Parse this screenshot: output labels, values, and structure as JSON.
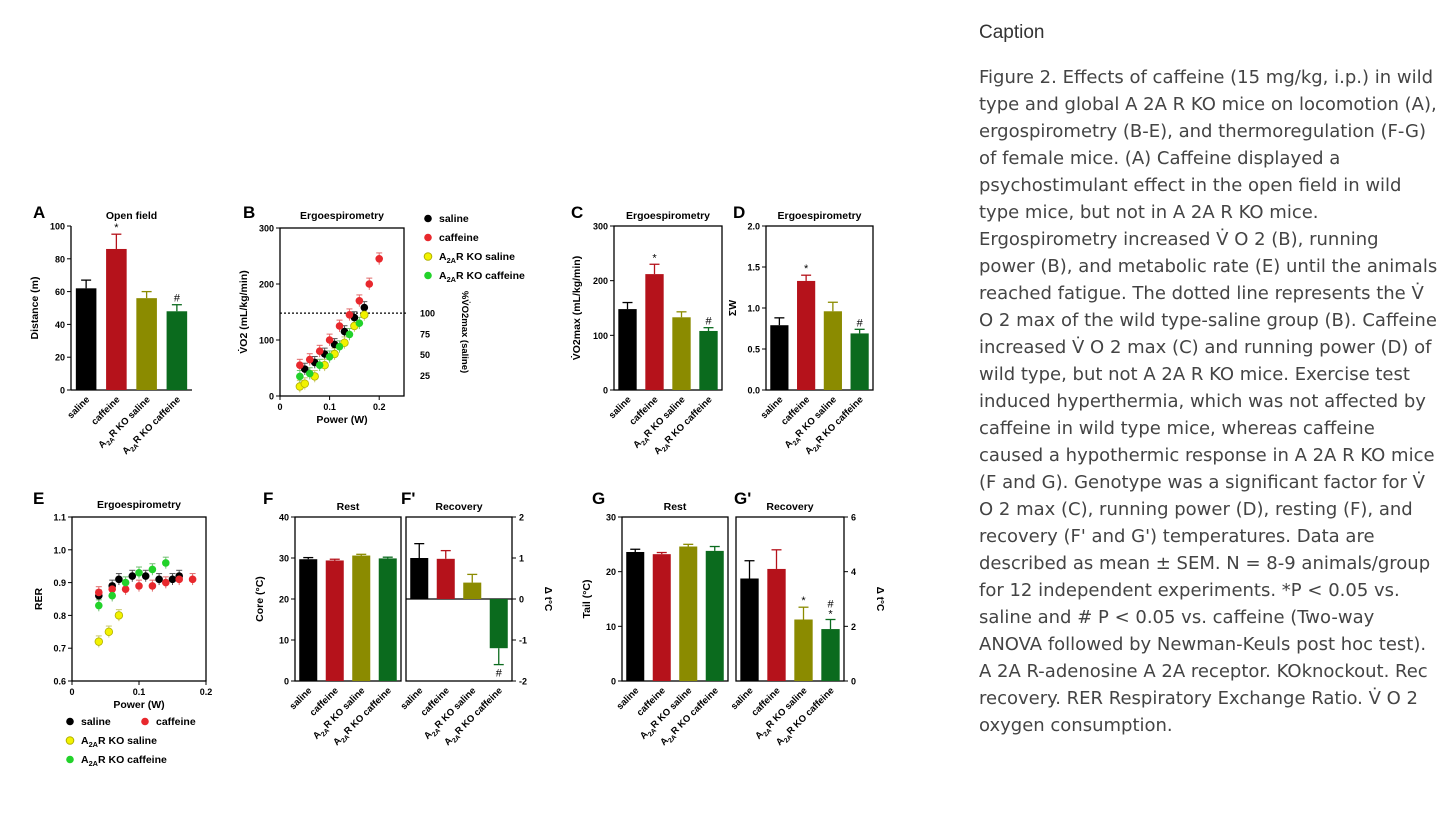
{
  "caption": {
    "heading": "Caption",
    "text": "Figure 2. Effects of caffeine (15 mg/kg, i.p.) in wild type and global A 2A R KO mice on locomotion (A), ergospirometry (B-E), and thermoregulation (F-G) of female mice. (A) Caffeine displayed a psychostimulant effect in the open field in wild type mice, but not in A 2A R KO mice. Ergospirometry increased V̇ O 2 (B), running power (B), and metabolic rate (E) until the animals reached fatigue. The dotted line represents the V̇ O 2 max of the wild type-saline group (B). Caffeine increased V̇ O 2 max (C) and running power (D) of wild type, but not A 2A R KO mice. Exercise test induced hyperthermia, which was not affected by caffeine in wild type mice, whereas caffeine caused a hypothermic response in A 2A R KO mice (F and G). Genotype was a significant factor for V̇ O 2 max (C), running power (D), resting (F), and recovery (F' and G') temperatures. Data are described as mean ± SEM. N = 8-9 animals/group for 12 independent experiments. *P < 0.05 vs. saline and # P < 0.05 vs. caffeine (Two-way ANOVA followed by Newman-Keuls post hoc test). A 2A R-adenosine A 2A receptor. KOknockout. Rec recovery. RER Respiratory Exchange Ratio. V̇ O 2 oxygen consumption."
  },
  "colors": {
    "saline": "#000000",
    "caffeine": "#b5121b",
    "ko_saline": "#8b8b00",
    "ko_caffeine": "#0b6b1e",
    "scatter_caffeine": "#e8282d",
    "scatter_ko_saline": "#f2f200",
    "scatter_ko_caffeine": "#22d22a"
  },
  "group_labels": [
    "saline",
    "caffeine",
    "A2AR KO saline",
    "A2AR KO caffeine"
  ],
  "chart_data": [
    {
      "panel": "A",
      "type": "bar",
      "title": "Open field",
      "ylabel": "Distance (m)",
      "ylim": [
        0,
        100
      ],
      "yticks": [
        0,
        20,
        40,
        60,
        80,
        100
      ],
      "categories": [
        "saline",
        "caffeine",
        "A2AR KO saline",
        "A2AR KO caffeine"
      ],
      "values": [
        62,
        86,
        56,
        48
      ],
      "errors": [
        5,
        9,
        4,
        4
      ],
      "marks": [
        "",
        "*",
        "",
        "#"
      ]
    },
    {
      "panel": "B",
      "type": "scatter",
      "title": "Ergoespirometry",
      "xlabel": "Power (W)",
      "ylabel": "V̇O2 (mL/kg/min)",
      "xlim": [
        0,
        0.25
      ],
      "ylim": [
        0,
        300
      ],
      "xticks": [
        0,
        0.1,
        0.2
      ],
      "yticks": [
        0,
        100,
        200,
        300
      ],
      "right_axis": {
        "label": "%V̇O2max (saline)",
        "ticks": [
          25,
          50,
          75,
          100
        ]
      },
      "reference_line": 148,
      "legend": [
        "saline",
        "caffeine",
        "A2AR KO saline",
        "A2AR KO caffeine"
      ],
      "series": [
        {
          "name": "saline",
          "x": [
            0.05,
            0.07,
            0.09,
            0.11,
            0.13,
            0.15,
            0.17
          ],
          "y": [
            48,
            60,
            75,
            92,
            115,
            140,
            158
          ]
        },
        {
          "name": "caffeine",
          "x": [
            0.04,
            0.06,
            0.08,
            0.1,
            0.12,
            0.14,
            0.16,
            0.18,
            0.2
          ],
          "y": [
            55,
            65,
            80,
            100,
            125,
            145,
            170,
            200,
            245
          ]
        },
        {
          "name": "A2AR KO saline",
          "x": [
            0.04,
            0.05,
            0.07,
            0.09,
            0.11,
            0.13,
            0.15,
            0.17
          ],
          "y": [
            17,
            22,
            35,
            55,
            75,
            95,
            125,
            145
          ]
        },
        {
          "name": "A2AR KO caffeine",
          "x": [
            0.04,
            0.06,
            0.08,
            0.1,
            0.12,
            0.14,
            0.16
          ],
          "y": [
            35,
            40,
            55,
            70,
            88,
            110,
            130
          ]
        }
      ]
    },
    {
      "panel": "C",
      "type": "bar",
      "title": "Ergoespirometry",
      "ylabel": "V̇O2max (mL/kg/min)",
      "ylim": [
        0,
        300
      ],
      "yticks": [
        0,
        100,
        200,
        300
      ],
      "categories": [
        "saline",
        "caffeine",
        "A2AR KO saline",
        "A2AR KO caffeine"
      ],
      "values": [
        148,
        212,
        133,
        108
      ],
      "errors": [
        12,
        18,
        10,
        6
      ],
      "marks": [
        "",
        "*",
        "",
        "#"
      ]
    },
    {
      "panel": "D",
      "type": "bar",
      "title": "Ergoespirometry",
      "ylabel": "ΣW",
      "ylim": [
        0,
        2.0
      ],
      "yticks": [
        "0.0",
        "0.5",
        "1.0",
        "1.5",
        "2.0"
      ],
      "categories": [
        "saline",
        "caffeine",
        "A2AR KO saline",
        "A2AR KO caffeine"
      ],
      "values": [
        0.79,
        1.33,
        0.96,
        0.69
      ],
      "errors": [
        0.09,
        0.07,
        0.11,
        0.05
      ],
      "marks": [
        "",
        "*",
        "",
        "#"
      ]
    },
    {
      "panel": "E",
      "type": "scatter",
      "title": "Ergoespirometry",
      "xlabel": "Power (W)",
      "ylabel": "RER",
      "xlim": [
        0,
        0.2
      ],
      "ylim": [
        0.6,
        1.1
      ],
      "xticks": [
        0,
        0.1,
        0.2
      ],
      "yticks": [
        "0.6",
        "0.7",
        "0.8",
        "0.9",
        "1.0",
        "1.1"
      ],
      "legend": [
        "saline",
        "caffeine",
        "A2AR KO saline",
        "A2AR KO caffeine"
      ],
      "series": [
        {
          "name": "saline",
          "x": [
            0.04,
            0.06,
            0.07,
            0.09,
            0.11,
            0.13,
            0.15,
            0.16
          ],
          "y": [
            0.86,
            0.89,
            0.91,
            0.92,
            0.92,
            0.91,
            0.91,
            0.92
          ]
        },
        {
          "name": "caffeine",
          "x": [
            0.04,
            0.06,
            0.08,
            0.1,
            0.12,
            0.14,
            0.16,
            0.18
          ],
          "y": [
            0.87,
            0.88,
            0.88,
            0.89,
            0.89,
            0.9,
            0.91,
            0.91
          ]
        },
        {
          "name": "A2AR KO saline",
          "x": [
            0.04,
            0.055,
            0.07
          ],
          "y": [
            0.72,
            0.75,
            0.8
          ]
        },
        {
          "name": "A2AR KO caffeine",
          "x": [
            0.04,
            0.06,
            0.08,
            0.1,
            0.12,
            0.14
          ],
          "y": [
            0.83,
            0.86,
            0.9,
            0.93,
            0.94,
            0.96
          ]
        }
      ]
    },
    {
      "panel": "F",
      "type": "bar",
      "title": "Rest",
      "ylabel": "Core (°C)",
      "ylim": [
        0,
        40
      ],
      "yticks": [
        0,
        10,
        20,
        30,
        40
      ],
      "categories": [
        "saline",
        "caffeine",
        "A2AR KO saline",
        "A2AR KO caffeine"
      ],
      "values": [
        29.7,
        29.4,
        30.6,
        29.9
      ],
      "errors": [
        0.4,
        0.3,
        0.3,
        0.3
      ],
      "marks": [
        "",
        "",
        "",
        ""
      ]
    },
    {
      "panel": "F'",
      "type": "bar",
      "title": "Recovery",
      "ylabel": "Δ t°C",
      "ylim": [
        -2,
        2
      ],
      "yticks": [
        -2,
        -1,
        0,
        1,
        2
      ],
      "categories": [
        "saline",
        "caffeine",
        "A2AR KO saline",
        "A2AR KO caffeine"
      ],
      "values": [
        1.0,
        0.98,
        0.4,
        -1.2
      ],
      "errors": [
        0.35,
        0.2,
        0.2,
        0.4
      ],
      "marks": [
        "",
        "",
        "",
        "#"
      ]
    },
    {
      "panel": "G",
      "type": "bar",
      "title": "Rest",
      "ylabel": "Tail (°C)",
      "ylim": [
        0,
        30
      ],
      "yticks": [
        0,
        10,
        20,
        30
      ],
      "categories": [
        "saline",
        "caffeine",
        "A2AR KO saline",
        "A2AR KO caffeine"
      ],
      "values": [
        23.6,
        23.2,
        24.6,
        23.8
      ],
      "errors": [
        0.5,
        0.3,
        0.4,
        0.8
      ],
      "marks": [
        "",
        "",
        "",
        ""
      ]
    },
    {
      "panel": "G'",
      "type": "bar",
      "title": "Recovery",
      "ylabel": "Δ t°C",
      "ylim": [
        0,
        6
      ],
      "yticks": [
        0,
        2,
        4,
        6
      ],
      "categories": [
        "saline",
        "caffeine",
        "A2AR KO saline",
        "A2AR KO caffeine"
      ],
      "values": [
        3.75,
        4.1,
        2.25,
        1.9
      ],
      "errors": [
        0.65,
        0.7,
        0.45,
        0.35
      ],
      "marks": [
        "",
        "",
        "*",
        "#*"
      ]
    }
  ]
}
